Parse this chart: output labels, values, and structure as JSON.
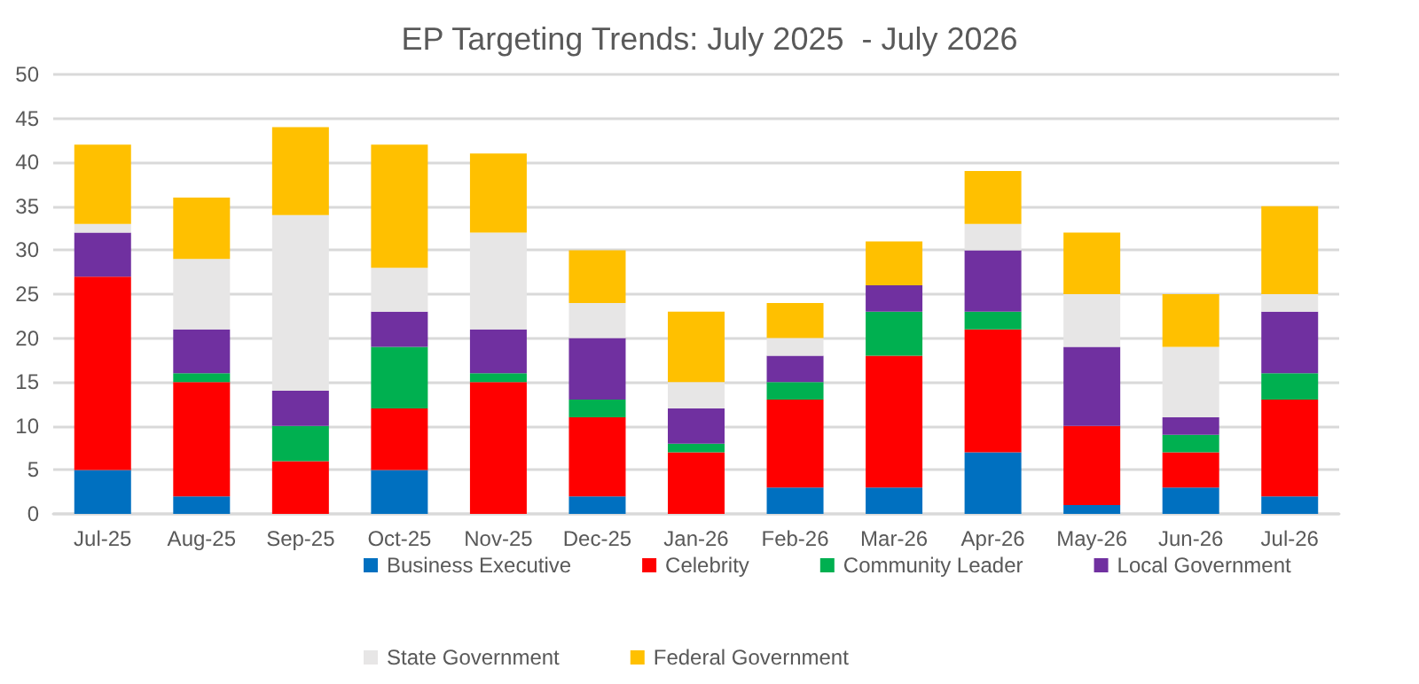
{
  "chart_data": {
    "type": "bar",
    "title": "EP Targeting Trends: July 2025  - July 2026",
    "stacked": true,
    "categories": [
      "Jul-25",
      "Aug-25",
      "Sep-25",
      "Oct-25",
      "Nov-25",
      "Dec-25",
      "Jan-26",
      "Feb-26",
      "Mar-26",
      "Apr-26",
      "May-26",
      "Jun-26",
      "Jul-26"
    ],
    "series": [
      {
        "name": "Business Executive",
        "color": "#0070c0",
        "values": [
          5,
          2,
          0,
          5,
          0,
          2,
          0,
          3,
          3,
          7,
          1,
          3,
          2
        ]
      },
      {
        "name": "Celebrity",
        "color": "#ff0000",
        "values": [
          22,
          13,
          6,
          7,
          15,
          9,
          7,
          10,
          15,
          14,
          9,
          4,
          11
        ]
      },
      {
        "name": "Community Leader",
        "color": "#00b050",
        "values": [
          0,
          1,
          4,
          7,
          1,
          2,
          1,
          2,
          5,
          2,
          0,
          2,
          3
        ]
      },
      {
        "name": "Local Government",
        "color": "#7030a0",
        "values": [
          5,
          5,
          4,
          4,
          5,
          7,
          4,
          3,
          3,
          7,
          9,
          2,
          7
        ]
      },
      {
        "name": "State Government",
        "color": "#e7e6e6",
        "values": [
          1,
          8,
          20,
          5,
          11,
          4,
          3,
          2,
          0,
          3,
          6,
          8,
          2
        ]
      },
      {
        "name": "Federal Government",
        "color": "#ffc000",
        "values": [
          9,
          7,
          10,
          14,
          9,
          6,
          8,
          4,
          5,
          6,
          7,
          6,
          10
        ]
      }
    ],
    "ylim": [
      0,
      50
    ],
    "yticks": [
      0,
      5,
      10,
      15,
      20,
      25,
      30,
      35,
      40,
      45,
      50
    ],
    "grid": "y",
    "legend": "bottom"
  }
}
